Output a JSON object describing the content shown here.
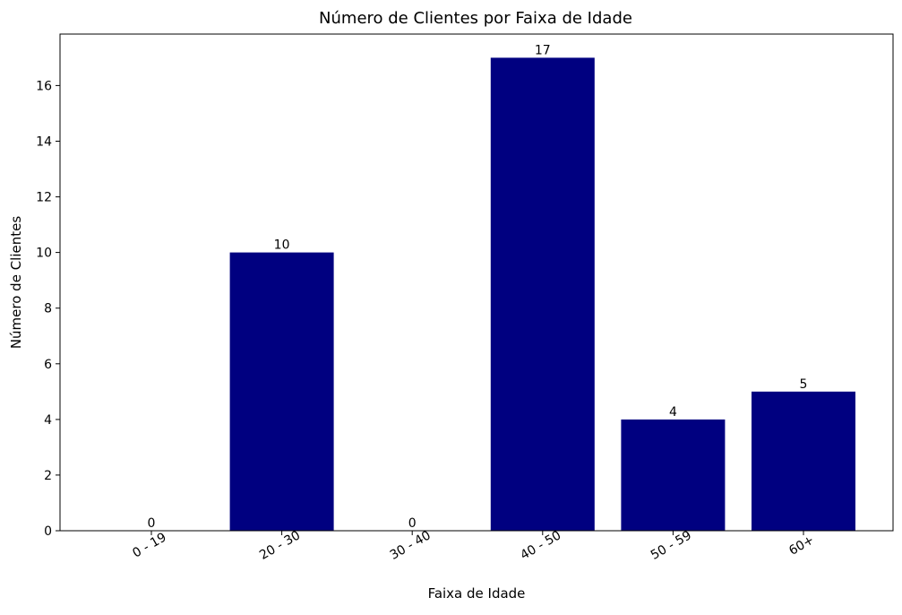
{
  "chart_data": {
    "type": "bar",
    "title": "Número de Clientes por Faixa de Idade",
    "xlabel": "Faixa de Idade",
    "ylabel": "Número de Clientes",
    "categories": [
      "0 - 19",
      "20 - 30",
      "30 - 40",
      "40 - 50",
      "50 - 59",
      "60+"
    ],
    "values": [
      0,
      10,
      0,
      17,
      4,
      5
    ],
    "data_labels": [
      "0",
      "10",
      "0",
      "17",
      "4",
      "5"
    ],
    "ylim": [
      0,
      17.85
    ],
    "yticks": [
      0,
      2,
      4,
      6,
      8,
      10,
      12,
      14,
      16
    ],
    "ytick_labels": [
      "0",
      "2",
      "4",
      "6",
      "8",
      "10",
      "12",
      "14",
      "16"
    ],
    "xtick_rotation": -30,
    "grid": false,
    "legend": "none",
    "bar_color": "#000080"
  }
}
